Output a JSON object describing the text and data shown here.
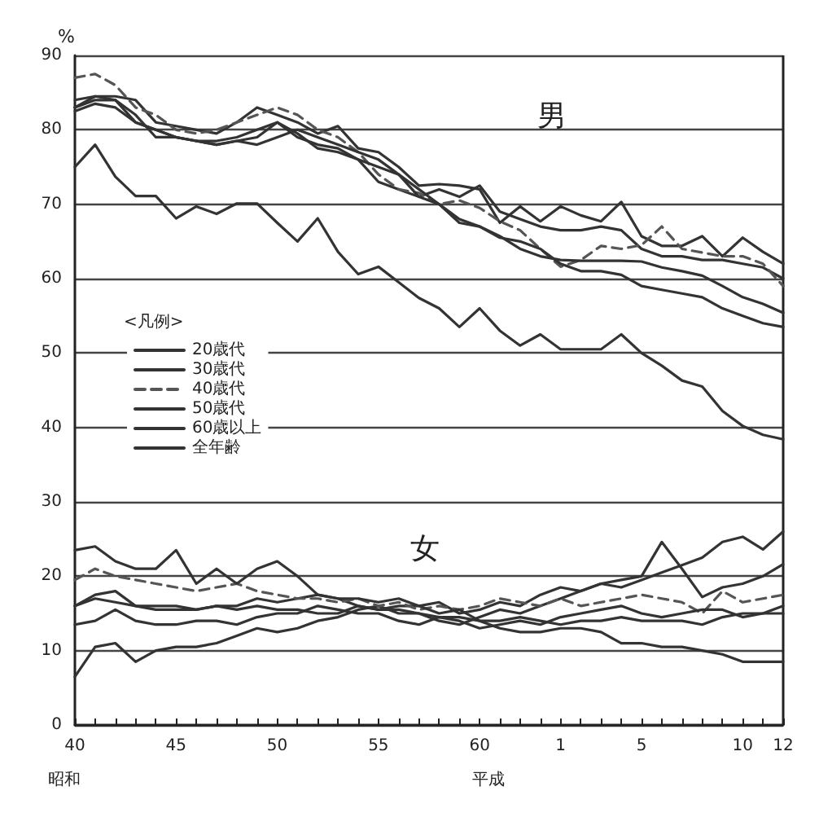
{
  "chart_data": {
    "type": "line",
    "ylabel": "%",
    "legend_title": "<凡例>",
    "legend": "left",
    "grid": "y",
    "marker": "none",
    "categories": [
      "40",
      null,
      null,
      null,
      null,
      "45",
      null,
      null,
      null,
      null,
      "50",
      null,
      null,
      null,
      null,
      "55",
      null,
      null,
      null,
      null,
      "60",
      null,
      null,
      null,
      "1",
      null,
      null,
      null,
      "5",
      null,
      null,
      null,
      null,
      "10",
      null,
      "12"
    ],
    "ylim": [
      0,
      90
    ],
    "yticks": [
      0,
      10,
      20,
      30,
      40,
      50,
      60,
      70,
      80,
      90
    ],
    "annotations": [
      "男",
      "女",
      "昭和",
      "平成"
    ],
    "series": [
      {
        "name": "20歳代",
        "color": "#333333",
        "line_style": "solid",
        "values": [
          83,
          84.5,
          84.5,
          84,
          81,
          80.5,
          80,
          79.5,
          81,
          83,
          82,
          81,
          79.5,
          80.5,
          77.5,
          77,
          75,
          72.5,
          72.7,
          72.5,
          72,
          67.5,
          69.7,
          67.7,
          69.7,
          68.5,
          67.7,
          70.3,
          65.7,
          64.4,
          64.4,
          65.7,
          63,
          65.5,
          63.6,
          62
        ]
      },
      {
        "name": "30歳代",
        "color": "#333333",
        "line_style": "solid",
        "values": [
          84,
          84.5,
          84,
          81,
          80,
          79,
          78.5,
          78,
          78.5,
          79,
          81,
          79,
          78,
          77.5,
          76,
          73,
          72,
          71,
          72,
          71,
          72.5,
          69,
          68,
          67,
          66.5,
          66.5,
          67,
          66.5,
          64,
          63,
          63,
          62.5,
          62.5,
          62,
          61.5,
          60
        ]
      },
      {
        "name": "40歳代",
        "color": "#555555",
        "line_style": "dashed",
        "values": [
          87,
          87.5,
          86,
          83,
          82,
          80,
          79.5,
          80,
          81,
          82,
          83,
          82,
          80,
          79,
          77,
          74,
          72,
          71.5,
          70,
          70.5,
          69.5,
          67.7,
          66.5,
          64,
          61.6,
          62.5,
          64.4,
          64,
          64.5,
          67,
          64,
          63.5,
          63,
          63,
          62,
          59
        ]
      },
      {
        "name": "50歳代",
        "color": "#333333",
        "line_style": "solid",
        "values": [
          83,
          84,
          84,
          82,
          79,
          79,
          78.5,
          78,
          78.5,
          78,
          79,
          80,
          79,
          78,
          77,
          76,
          74,
          71,
          70,
          67.5,
          67,
          65.7,
          64,
          63,
          62.5,
          62.4,
          62.4,
          62.4,
          62.3,
          61.5,
          61,
          60.4,
          59,
          57.5,
          56.6,
          55.4
        ]
      },
      {
        "name": "60歳以上",
        "color": "#333333",
        "line_style": "solid",
        "values": [
          75,
          78,
          73.7,
          71.1,
          71.1,
          68.1,
          69.7,
          68.7,
          70.1,
          70.1,
          67.5,
          65,
          68.1,
          63.6,
          60.6,
          61.6,
          59.5,
          57.4,
          56,
          53.5,
          56,
          53,
          51,
          52.5,
          50.5,
          50.5,
          50.5,
          52.5,
          50,
          48.3,
          46.3,
          45.5,
          42.2,
          40.2,
          39,
          38.4
        ]
      },
      {
        "name": "全年齢",
        "color": "#333333",
        "line_style": "solid",
        "values": [
          82.5,
          83.5,
          83,
          81,
          80,
          79,
          78.5,
          78.5,
          79,
          80,
          81,
          79.5,
          77.5,
          77,
          76,
          75,
          74,
          72,
          70,
          68,
          67,
          65.5,
          65,
          64,
          62,
          61,
          61,
          60.5,
          59,
          58.5,
          58,
          57.5,
          56,
          55,
          54,
          53.5
        ]
      },
      {
        "color": "#333333",
        "line_style": "solid",
        "values": [
          6.5,
          10.5,
          11,
          8.5,
          10,
          10.5,
          10.5,
          11,
          12,
          13,
          12.5,
          13,
          14,
          14.5,
          15.5,
          16,
          15,
          15,
          14,
          13.5,
          14.5,
          15.5,
          15,
          16,
          17,
          18,
          19,
          18.5,
          19.5,
          20.5,
          21.5,
          22.5,
          24.6,
          25.3,
          23.6,
          26
        ]
      },
      {
        "color": "#333333",
        "line_style": "solid",
        "values": [
          16,
          17.5,
          18,
          16,
          16,
          16,
          15.5,
          16,
          16,
          17,
          16.5,
          17,
          17.5,
          17,
          16,
          15.5,
          16,
          16,
          16.5,
          15,
          15.5,
          16.5,
          16,
          17.5,
          18.5,
          18,
          19,
          19.5,
          20,
          24.6,
          21,
          17.2,
          18.5,
          19,
          20,
          21.6
        ]
      },
      {
        "color": "#555555",
        "line_style": "dashed",
        "values": [
          19.5,
          21,
          20,
          19.5,
          19,
          18.5,
          18,
          18.5,
          19,
          18,
          17.5,
          17,
          17,
          16.5,
          17,
          16,
          16.5,
          15.5,
          16,
          15.5,
          16,
          17,
          16.5,
          16,
          17,
          16,
          16.5,
          17,
          17.5,
          17,
          16.5,
          15,
          18,
          16.5,
          17,
          17.5
        ]
      },
      {
        "color": "#333333",
        "line_style": "solid",
        "values": [
          13.5,
          14,
          15.5,
          14,
          13.5,
          13.5,
          14,
          14,
          13.5,
          14.5,
          15,
          15,
          16,
          15.5,
          15,
          15,
          14,
          13.5,
          14.5,
          14,
          13,
          13.5,
          14,
          13.5,
          14.5,
          15,
          15.5,
          16,
          15,
          14.5,
          15,
          15.5,
          15.5,
          14.5,
          15,
          16
        ]
      },
      {
        "color": "#333333",
        "line_style": "solid",
        "values": [
          23.5,
          24,
          22,
          21,
          21,
          23.5,
          19,
          21,
          19,
          21,
          22,
          20,
          17.5,
          17,
          17,
          16.5,
          17,
          16,
          15,
          15.5,
          14,
          13,
          12.5,
          12.5,
          13,
          13,
          12.5,
          11,
          11,
          10.5,
          10.5,
          10,
          9.5,
          8.5,
          8.5,
          8.5
        ]
      },
      {
        "color": "#333333",
        "line_style": "solid",
        "values": [
          16,
          17,
          16.5,
          16,
          15.5,
          15.5,
          15.5,
          16,
          15.5,
          16,
          15.5,
          15.5,
          15,
          15,
          16,
          15.5,
          15.5,
          15,
          14.5,
          14.5,
          14,
          14,
          14.5,
          14,
          13.5,
          14,
          14,
          14.5,
          14,
          14,
          14,
          13.5,
          14.5,
          15,
          15,
          15
        ]
      }
    ]
  }
}
